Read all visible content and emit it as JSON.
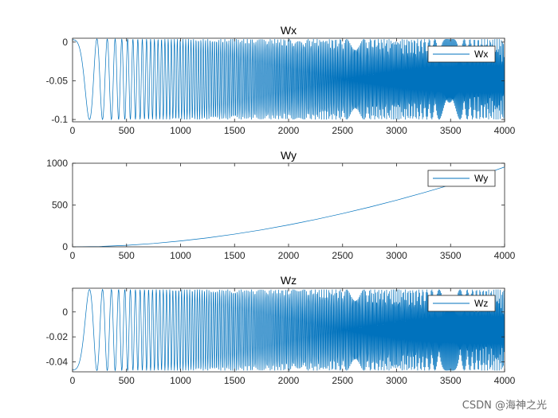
{
  "watermark": "CSDN @海神之光",
  "colors": {
    "series": "#0072BD",
    "axis": "#262626",
    "background": "#ffffff"
  },
  "chart_data": [
    {
      "type": "line",
      "title": "Wx",
      "legend": {
        "label": "Wx",
        "position": "top-right"
      },
      "xlim": [
        0,
        4000
      ],
      "ylim": [
        -0.103,
        0.005
      ],
      "xticks": [
        0,
        500,
        1000,
        1500,
        2000,
        2500,
        3000,
        3500,
        4000
      ],
      "xtick_labels": [
        "0",
        "500",
        "1000",
        "1500",
        "2000",
        "2500",
        "3000",
        "3500",
        "4000"
      ],
      "yticks": [
        0,
        -0.05,
        -0.1
      ],
      "ytick_labels": [
        "0",
        "-0.05",
        "-0.1"
      ],
      "signal": {
        "form": "chirp",
        "center": -0.048,
        "amplitude": 0.052,
        "phase_rate": 0.00012,
        "phase_offset": 1.75,
        "samples": 1600
      }
    },
    {
      "type": "line",
      "title": "Wy",
      "legend": {
        "label": "Wy",
        "position": "top-right"
      },
      "xlim": [
        0,
        4000
      ],
      "ylim": [
        0,
        1000
      ],
      "xticks": [
        0,
        500,
        1000,
        1500,
        2000,
        2500,
        3000,
        3500,
        4000
      ],
      "xtick_labels": [
        "0",
        "500",
        "1000",
        "1500",
        "2000",
        "2500",
        "3000",
        "3500",
        "4000"
      ],
      "yticks": [
        0,
        500,
        1000
      ],
      "ytick_labels": [
        "0",
        "500",
        "1000"
      ],
      "x": [
        0,
        250,
        500,
        750,
        1000,
        1250,
        1500,
        1750,
        2000,
        2250,
        2500,
        2750,
        3000,
        3250,
        3500,
        3750,
        4000
      ],
      "y": [
        0,
        4,
        18,
        40,
        70,
        107,
        152,
        203,
        262,
        327,
        398,
        475,
        558,
        647,
        741,
        841,
        955
      ]
    },
    {
      "type": "line",
      "title": "Wz",
      "legend": {
        "label": "Wz",
        "position": "top-right"
      },
      "xlim": [
        0,
        4000
      ],
      "ylim": [
        -0.048,
        0.019
      ],
      "xticks": [
        0,
        500,
        1000,
        1500,
        2000,
        2500,
        3000,
        3500,
        4000
      ],
      "xtick_labels": [
        "0",
        "500",
        "1000",
        "1500",
        "2000",
        "2500",
        "3000",
        "3500",
        "4000"
      ],
      "yticks": [
        0,
        -0.02,
        -0.04
      ],
      "ytick_labels": [
        "0",
        "-0.02",
        "-0.04"
      ],
      "signal": {
        "form": "chirp",
        "center": -0.0145,
        "amplitude": 0.0325,
        "phase_rate": 0.00012,
        "phase_offset": -1.4,
        "samples": 1600
      }
    }
  ]
}
